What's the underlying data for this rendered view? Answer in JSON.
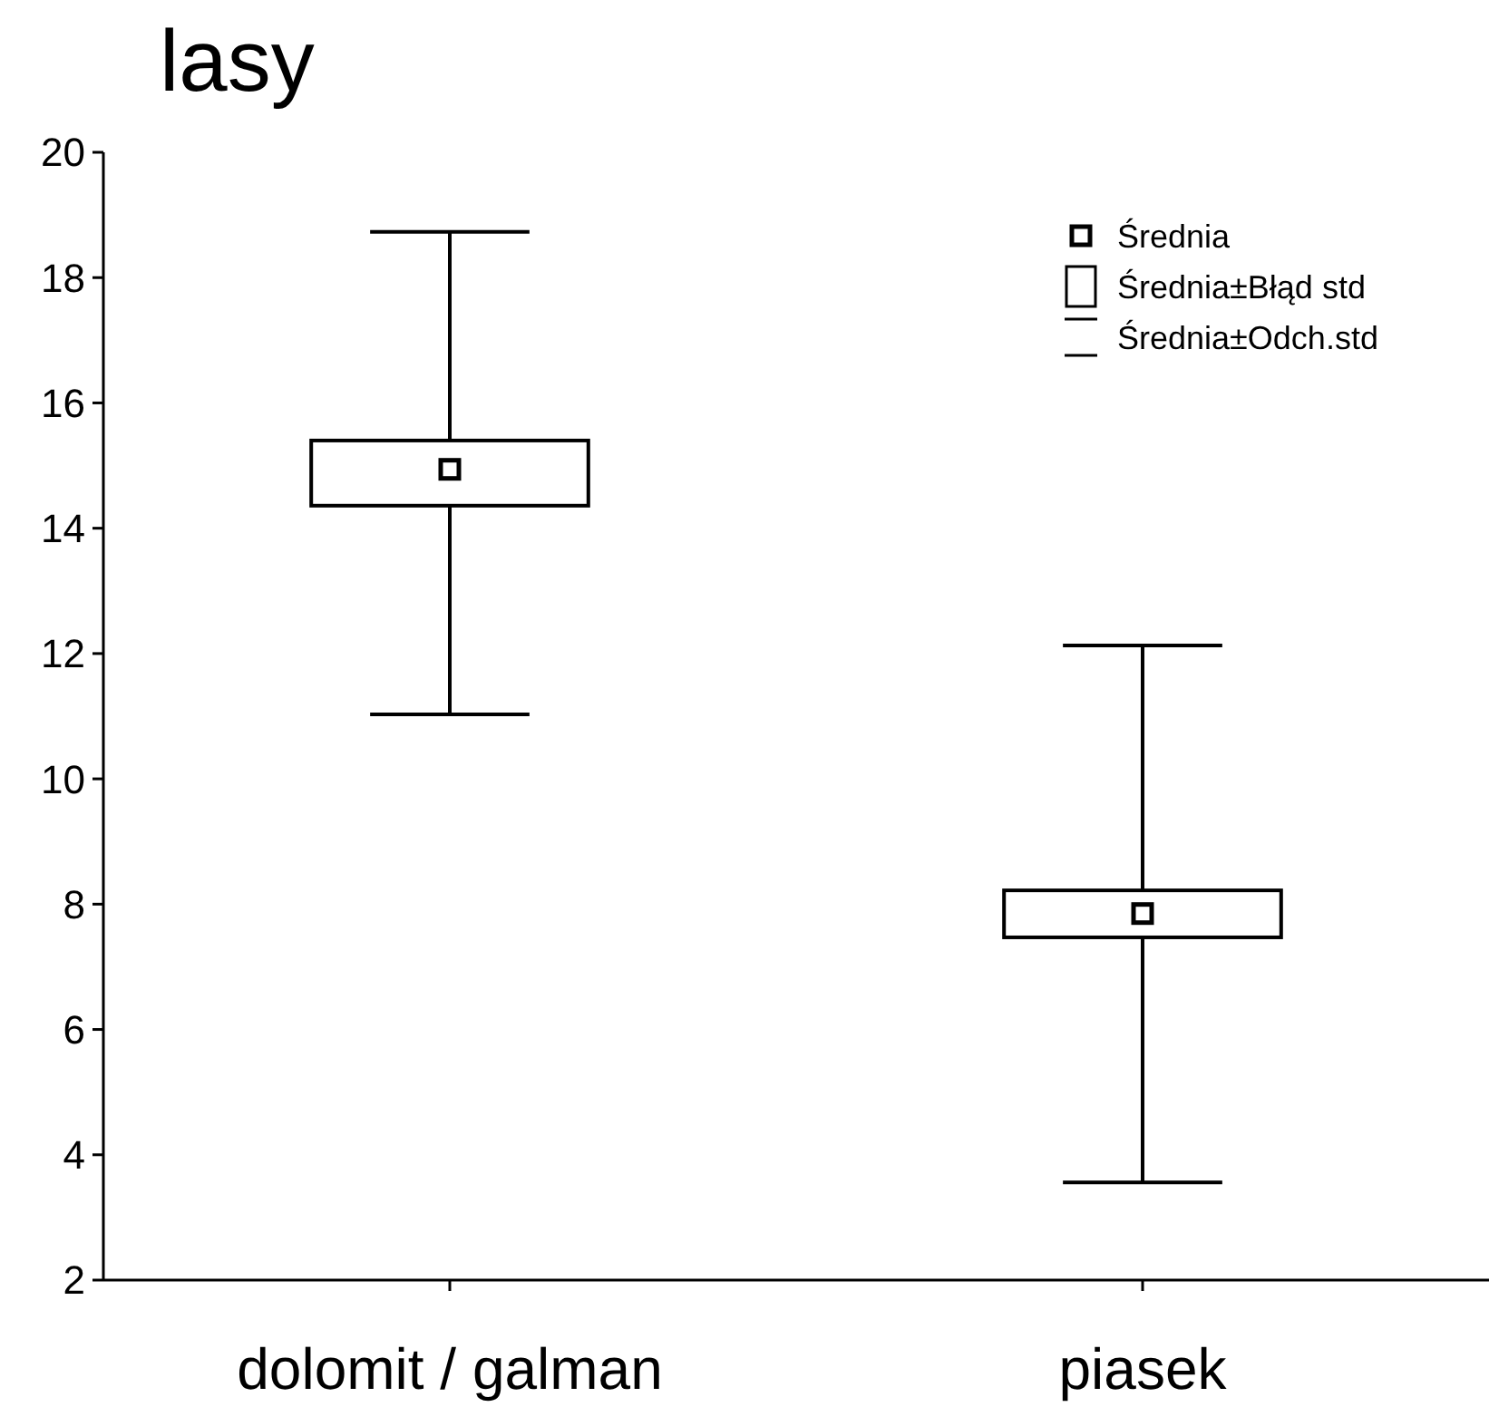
{
  "chart_data": {
    "type": "box",
    "title": "lasy",
    "categories": [
      "dolomit / galman",
      "piasek"
    ],
    "boxes": [
      {
        "low": 11.03,
        "q1": 14.36,
        "median": 14.94,
        "q3": 15.4,
        "high": 18.73
      },
      {
        "low": 3.56,
        "q1": 7.47,
        "median": 7.85,
        "q3": 8.22,
        "high": 12.13
      }
    ],
    "ylim": [
      2,
      20
    ],
    "yticks": [
      2,
      4,
      6,
      8,
      10,
      12,
      14,
      16,
      18,
      20
    ],
    "marker": "square",
    "annotations": [
      "Średnia",
      "Średnia±Błąd std",
      "Średnia±Odch.std"
    ]
  }
}
